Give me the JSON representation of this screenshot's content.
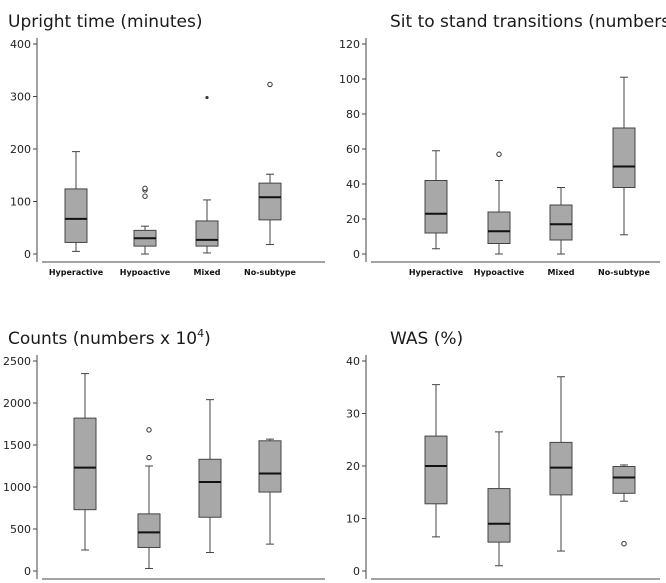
{
  "chart_data": [
    {
      "type": "box",
      "title": "Upright time (minutes)",
      "categories": [
        "Hyperactive",
        "Hypoactive",
        "Mixed",
        "No-subtype"
      ],
      "ylim": [
        0,
        400
      ],
      "yticks": [
        0,
        100,
        200,
        300,
        400
      ],
      "boxes": [
        {
          "min": 5,
          "q1": 22,
          "median": 67,
          "q3": 124,
          "max": 195,
          "outliers": []
        },
        {
          "min": 0,
          "q1": 15,
          "median": 30,
          "q3": 45,
          "max": 53,
          "outliers": [
            110,
            122,
            125
          ]
        },
        {
          "min": 2,
          "q1": 15,
          "median": 27,
          "q3": 63,
          "max": 103,
          "outliers": [],
          "extremes": [
            298
          ]
        },
        {
          "min": 18,
          "q1": 65,
          "median": 108,
          "q3": 135,
          "max": 152,
          "outliers": [
            323
          ]
        }
      ]
    },
    {
      "type": "box",
      "title": "Sit to stand transitions (numbers)",
      "categories": [
        "Hyperactive",
        "Hypoactive",
        "Mixed",
        "No-subtype"
      ],
      "ylim": [
        0,
        120
      ],
      "yticks": [
        0,
        20,
        40,
        60,
        80,
        100,
        120
      ],
      "boxes": [
        {
          "min": 3,
          "q1": 12,
          "median": 23,
          "q3": 42,
          "max": 59,
          "outliers": []
        },
        {
          "min": 0,
          "q1": 6,
          "median": 13,
          "q3": 24,
          "max": 42,
          "outliers": [
            57
          ]
        },
        {
          "min": 0,
          "q1": 8,
          "median": 17,
          "q3": 28,
          "max": 38,
          "outliers": []
        },
        {
          "min": 11,
          "q1": 38,
          "median": 50,
          "q3": 72,
          "max": 101,
          "outliers": []
        }
      ]
    },
    {
      "type": "box",
      "title": "Counts (numbers x 10",
      "title_sup": "4",
      "title_end": ")",
      "categories": [
        "Hyperactive",
        "Hypoactive",
        "Mixed",
        "No-subtype"
      ],
      "ylim": [
        0,
        2500
      ],
      "yticks": [
        0,
        500,
        1000,
        1500,
        2000,
        2500
      ],
      "boxes": [
        {
          "min": 250,
          "q1": 730,
          "median": 1230,
          "q3": 1820,
          "max": 2350,
          "outliers": []
        },
        {
          "min": 30,
          "q1": 280,
          "median": 460,
          "q3": 680,
          "max": 1250,
          "outliers": [
            1350,
            1680
          ]
        },
        {
          "min": 220,
          "q1": 640,
          "median": 1060,
          "q3": 1330,
          "max": 2040,
          "outliers": []
        },
        {
          "min": 320,
          "q1": 940,
          "median": 1160,
          "q3": 1550,
          "max": 1570,
          "outliers": []
        }
      ]
    },
    {
      "type": "box",
      "title": "WAS (%)",
      "categories": [
        "Hyperactive",
        "Hypoactive",
        "Mixed",
        "No-subtype"
      ],
      "ylim": [
        0,
        40
      ],
      "yticks": [
        0,
        10,
        20,
        30,
        40
      ],
      "boxes": [
        {
          "min": 6.5,
          "q1": 12.8,
          "median": 20.0,
          "q3": 25.7,
          "max": 35.5,
          "outliers": []
        },
        {
          "min": 1.0,
          "q1": 5.5,
          "median": 9.0,
          "q3": 15.7,
          "max": 26.5,
          "outliers": []
        },
        {
          "min": 3.8,
          "q1": 14.5,
          "median": 19.7,
          "q3": 24.5,
          "max": 37.0,
          "outliers": []
        },
        {
          "min": 13.3,
          "q1": 14.8,
          "median": 17.8,
          "q3": 19.9,
          "max": 20.2,
          "outliers": [
            5.2
          ]
        }
      ]
    }
  ]
}
